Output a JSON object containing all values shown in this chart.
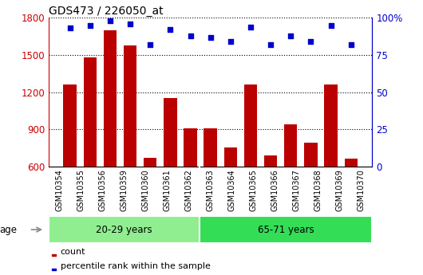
{
  "title": "GDS473 / 226050_at",
  "samples": [
    "GSM10354",
    "GSM10355",
    "GSM10356",
    "GSM10359",
    "GSM10360",
    "GSM10361",
    "GSM10362",
    "GSM10363",
    "GSM10364",
    "GSM10365",
    "GSM10366",
    "GSM10367",
    "GSM10368",
    "GSM10369",
    "GSM10370"
  ],
  "counts": [
    1260,
    1480,
    1700,
    1580,
    670,
    1150,
    910,
    910,
    750,
    1260,
    690,
    940,
    790,
    1260,
    660
  ],
  "percentiles": [
    93,
    95,
    98,
    96,
    82,
    92,
    88,
    87,
    84,
    94,
    82,
    88,
    84,
    95,
    82
  ],
  "ylim_left": [
    600,
    1800
  ],
  "ylim_right": [
    0,
    100
  ],
  "yticks_left": [
    600,
    900,
    1200,
    1500,
    1800
  ],
  "yticks_right": [
    0,
    25,
    50,
    75,
    100
  ],
  "bar_color": "#BB0000",
  "dot_color": "#0000CC",
  "group1_label": "20-29 years",
  "group1_count": 7,
  "group2_label": "65-71 years",
  "group2_count": 8,
  "group1_bg": "#90EE90",
  "group2_bg": "#33DD55",
  "age_label": "age",
  "legend_count_label": "count",
  "legend_percentile_label": "percentile rank within the sample",
  "plot_bg": "#FFFFFF",
  "xticklabel_bg": "#CCCCCC"
}
